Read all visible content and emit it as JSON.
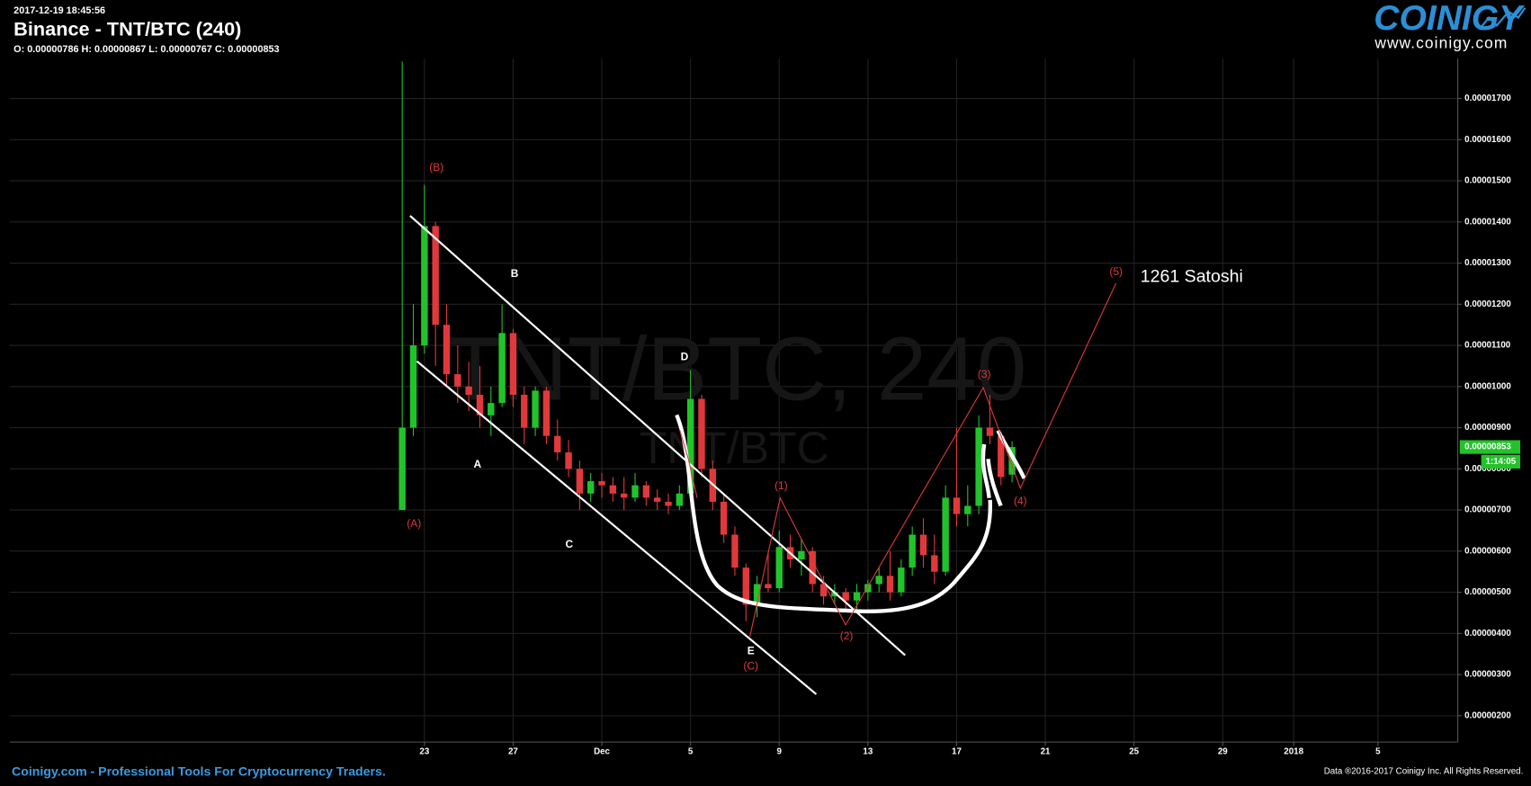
{
  "header": {
    "timestamp": "2017-12-19 18:45:56",
    "title": "Binance - TNT/BTC (240)",
    "ohlc": "O: 0.00000786 H: 0.00000867 L: 0.00000767 C: 0.00000853"
  },
  "logo": {
    "name": "COINIGY",
    "url": "www.coinigy.com"
  },
  "chart_data": {
    "type": "candlestick",
    "watermark": [
      "TNT/BTC, 240",
      "TNT/BTC"
    ],
    "x": [
      -1,
      -0.5,
      0,
      0.5,
      1,
      1.5,
      2,
      2.5,
      3,
      3.5,
      4,
      4.5,
      5,
      5.5,
      6,
      6.5,
      7,
      7.5,
      8,
      8.5,
      9,
      9.5,
      10,
      10.5,
      11,
      11.5,
      12,
      12.5,
      13,
      13.5,
      14,
      14.5,
      15,
      15.5,
      16,
      16.5,
      17,
      17.5,
      18,
      18.5,
      19,
      19.5,
      20,
      20.5,
      21,
      21.5,
      22,
      22.5,
      23,
      23.5,
      24,
      24.5,
      25,
      25.5,
      26,
      26.5
    ],
    "open": [
      7e-06,
      9e-06,
      1.1e-05,
      1.39e-05,
      1.15e-05,
      1.03e-05,
      1e-05,
      9.8e-06,
      9.3e-06,
      9.6e-06,
      1.13e-05,
      9.8e-06,
      9e-06,
      9.9e-06,
      8.8e-06,
      8.4e-06,
      8e-06,
      7.4e-06,
      7.7e-06,
      7.6e-06,
      7.4e-06,
      7.3e-06,
      7.6e-06,
      7.3e-06,
      7.2e-06,
      7.1e-06,
      7.4e-06,
      9.7e-06,
      8e-06,
      7.2e-06,
      6.4e-06,
      5.6e-06,
      4.7e-06,
      5.2e-06,
      5.1e-06,
      6.1e-06,
      5.8e-06,
      6e-06,
      5.2e-06,
      4.9e-06,
      5e-06,
      4.8e-06,
      5e-06,
      5.2e-06,
      5.4e-06,
      5e-06,
      5.6e-06,
      6.4e-06,
      5.9e-06,
      5.5e-06,
      7.3e-06,
      6.9e-06,
      7.1e-06,
      9e-06,
      8.8e-06,
      7.86e-06
    ],
    "high": [
      1.79e-05,
      1.2e-05,
      1.49e-05,
      1.4e-05,
      1.2e-05,
      1.1e-05,
      1.06e-05,
      1.05e-05,
      1e-05,
      1.2e-05,
      1.14e-05,
      1e-05,
      1e-05,
      1e-05,
      9.2e-06,
      8.7e-06,
      8.2e-06,
      7.9e-06,
      7.9e-06,
      7.8e-06,
      7.8e-06,
      7.9e-06,
      7.7e-06,
      7.5e-06,
      7.4e-06,
      7.6e-06,
      1.04e-05,
      9.8e-06,
      8.2e-06,
      7.4e-06,
      6.6e-06,
      5.7e-06,
      5.4e-06,
      6e-06,
      6.5e-06,
      6.4e-06,
      6.3e-06,
      6.1e-06,
      5.4e-06,
      5.2e-06,
      5.1e-06,
      5.2e-06,
      5.3e-06,
      5.6e-06,
      6e-06,
      5.8e-06,
      6.6e-06,
      6.8e-06,
      6.4e-06,
      7.6e-06,
      9e-06,
      7.6e-06,
      9.3e-06,
      9.8e-06,
      8.9e-06,
      8.67e-06
    ],
    "low": [
      7e-06,
      8.8e-06,
      1.08e-05,
      1.05e-05,
      1e-05,
      9.6e-06,
      9.4e-06,
      9e-06,
      8.8e-06,
      9.5e-06,
      9.5e-06,
      8.6e-06,
      8.8e-06,
      8.6e-06,
      8.2e-06,
      7.8e-06,
      7e-06,
      7.2e-06,
      7.3e-06,
      7.2e-06,
      7e-06,
      7.2e-06,
      7.1e-06,
      7e-06,
      6.9e-06,
      7e-06,
      7.3e-06,
      7.8e-06,
      7e-06,
      6.2e-06,
      5.4e-06,
      4.3e-06,
      4.4e-06,
      5e-06,
      5e-06,
      5.6e-06,
      5.4e-06,
      5e-06,
      4.7e-06,
      4.7e-06,
      4.6e-06,
      4.6e-06,
      4.8e-06,
      5e-06,
      4.8e-06,
      4.9e-06,
      5.4e-06,
      5.6e-06,
      5.2e-06,
      5.4e-06,
      6.6e-06,
      6.6e-06,
      6.9e-06,
      8.6e-06,
      7.6e-06,
      7.67e-06
    ],
    "close": [
      9e-06,
      1.1e-05,
      1.39e-05,
      1.15e-05,
      1.03e-05,
      1e-05,
      9.8e-06,
      9.3e-06,
      9.6e-06,
      1.13e-05,
      9.8e-06,
      9e-06,
      9.9e-06,
      8.8e-06,
      8.4e-06,
      8e-06,
      7.4e-06,
      7.7e-06,
      7.6e-06,
      7.4e-06,
      7.3e-06,
      7.6e-06,
      7.3e-06,
      7.2e-06,
      7.1e-06,
      7.4e-06,
      9.7e-06,
      8e-06,
      7.2e-06,
      6.4e-06,
      5.6e-06,
      4.7e-06,
      5.2e-06,
      5.1e-06,
      6.1e-06,
      5.8e-06,
      6e-06,
      5.2e-06,
      4.9e-06,
      5e-06,
      4.8e-06,
      5e-06,
      5.2e-06,
      5.4e-06,
      5e-06,
      5.6e-06,
      6.4e-06,
      5.9e-06,
      5.5e-06,
      7.3e-06,
      6.9e-06,
      7.1e-06,
      9e-06,
      8.8e-06,
      7.8e-06,
      8.53e-06
    ],
    "up_color": "#22c32a",
    "down_color": "#e0393b",
    "xlim": [
      -18.7,
      46.6
    ],
    "xticks": [
      {
        "value": 0,
        "label": "23"
      },
      {
        "value": 4,
        "label": "27"
      },
      {
        "value": 8,
        "label": "Dec"
      },
      {
        "value": 12,
        "label": "5"
      },
      {
        "value": 16,
        "label": "9"
      },
      {
        "value": 20,
        "label": "13"
      },
      {
        "value": 24,
        "label": "17"
      },
      {
        "value": 28,
        "label": "21"
      },
      {
        "value": 32,
        "label": "25"
      },
      {
        "value": 36,
        "label": "29"
      },
      {
        "value": 39.2,
        "label": "2018"
      },
      {
        "value": 43,
        "label": "5"
      }
    ],
    "ylim": [
      1.36e-06,
      1.797e-05
    ],
    "yticks": [
      {
        "value": 1.7e-05,
        "label": "0.00001700"
      },
      {
        "value": 1.6e-05,
        "label": "0.00001600"
      },
      {
        "value": 1.5e-05,
        "label": "0.00001500"
      },
      {
        "value": 1.4e-05,
        "label": "0.00001400"
      },
      {
        "value": 1.3e-05,
        "label": "0.00001300"
      },
      {
        "value": 1.2e-05,
        "label": "0.00001200"
      },
      {
        "value": 1.1e-05,
        "label": "0.00001100"
      },
      {
        "value": 1e-05,
        "label": "0.00001000"
      },
      {
        "value": 9e-06,
        "label": "0.00000900"
      },
      {
        "value": 8e-06,
        "label": "0.00000800"
      },
      {
        "value": 7e-06,
        "label": "0.00000700"
      },
      {
        "value": 6e-06,
        "label": "0.00000600"
      },
      {
        "value": 5e-06,
        "label": "0.00000500"
      },
      {
        "value": 4e-06,
        "label": "0.00000400"
      },
      {
        "value": 3e-06,
        "label": "0.00000300"
      },
      {
        "value": 2e-06,
        "label": "0.00000200"
      }
    ],
    "grid": true,
    "last_price_label": "0.00000853",
    "countdown": "1:14:05",
    "annotations": [
      "(B)",
      "B",
      "A",
      "C",
      "D",
      "E",
      "(C)",
      "(A)",
      "(1)",
      "(2)",
      "(3)",
      "(4)",
      "(5)",
      "1261 Satoshi"
    ]
  },
  "footer": {
    "left": "Coinigy.com - Professional Tools For Cryptocurrency Traders.",
    "right": "Data ®2016-2017 Coinigy Inc. All Rights Reserved."
  }
}
